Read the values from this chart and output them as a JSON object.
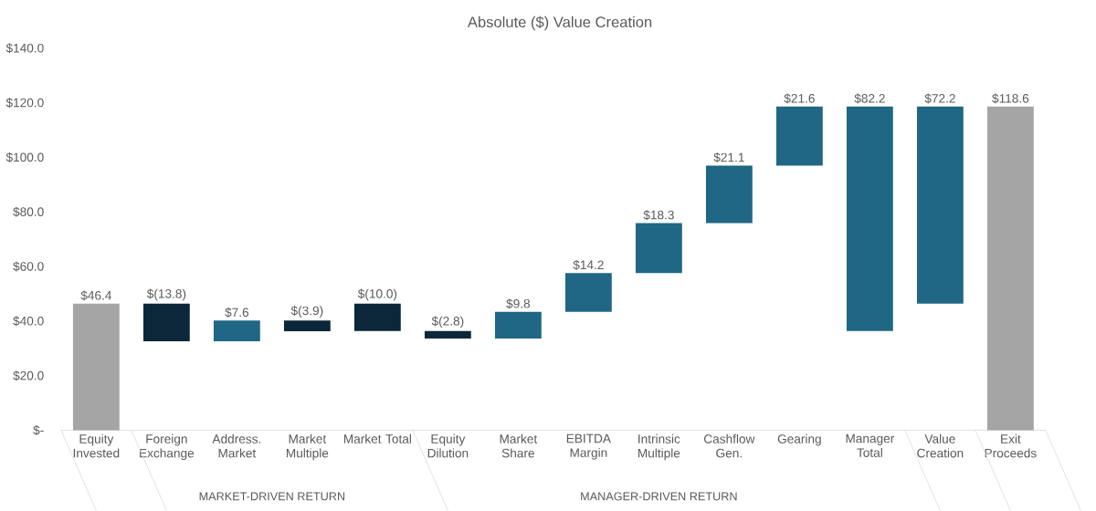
{
  "chart_data": {
    "type": "bar",
    "title": "Absolute ($) Value Creation",
    "categories": [
      "Equity Invested",
      "Foreign Exchange",
      "Address. Market",
      "Market Multiple",
      "Market Total",
      "Equity Dilution",
      "Market Share",
      "EBITDA Margin",
      "Intrinsic Multiple",
      "Cashflow Gen.",
      "Gearing",
      "Manager Total",
      "Value Creation",
      "Exit Proceeds"
    ],
    "base": [
      0,
      46.4,
      32.6,
      40.2,
      46.4,
      36.4,
      33.6,
      43.4,
      57.6,
      75.9,
      97.0,
      36.4,
      46.4,
      0
    ],
    "values": [
      46.4,
      -13.8,
      7.6,
      -3.9,
      -10.0,
      -2.8,
      9.8,
      14.2,
      18.3,
      21.1,
      21.6,
      82.2,
      72.2,
      118.6
    ],
    "value_labels": [
      "$46.4",
      "$(13.8)",
      "$7.6",
      "$(3.9)",
      "$(10.0)",
      "$(2.8)",
      "$9.8",
      "$14.2",
      "$18.3",
      "$21.1",
      "$21.6",
      "$82.2",
      "$72.2",
      "$118.6"
    ],
    "colors": [
      "#a5a5a5",
      "#0b2739",
      "#1f6784",
      "#0b2739",
      "#0b2739",
      "#0b2739",
      "#1f6784",
      "#1f6784",
      "#1f6784",
      "#1f6784",
      "#1f6784",
      "#1f6784",
      "#1f6784",
      "#a5a5a5"
    ],
    "ylim": [
      0,
      140
    ],
    "yticks": [
      {
        "value": 0,
        "label": "$-"
      },
      {
        "value": 20,
        "label": "$20.0"
      },
      {
        "value": 40,
        "label": "$40.0"
      },
      {
        "value": 60,
        "label": "$60.0"
      },
      {
        "value": 80,
        "label": "$80.0"
      },
      {
        "value": 100,
        "label": "$100.0"
      },
      {
        "value": 120,
        "label": "$120.0"
      },
      {
        "value": 140,
        "label": "$140.0"
      }
    ],
    "annotations": [
      "MARKET-DRIVEN RETURN",
      "MANAGER-DRIVEN RETURN"
    ]
  }
}
